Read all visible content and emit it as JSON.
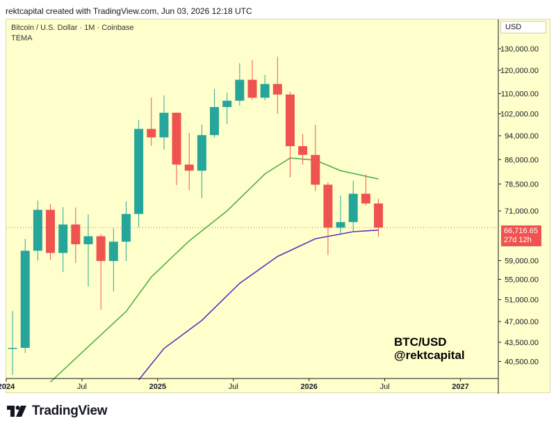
{
  "header": {
    "text": "rektcapital created with TradingView.com, Jun 03, 2026 12:18 UTC"
  },
  "legend": {
    "title": "Bitcoin / U.S. Dollar · 1M · Coinbase",
    "indicator": "TEMA"
  },
  "currency": "USD",
  "last_price": {
    "value": "66,716.65",
    "countdown": "27d 12h"
  },
  "watermark": {
    "line1": "BTC/USD",
    "line2": "@rektcapital"
  },
  "footer": {
    "brand": "TradingView"
  },
  "colors": {
    "background": "#ffffcc",
    "up": "#26a69a",
    "down": "#ef5350",
    "tema_fast": "#4caf50",
    "tema_slow": "#5b2fbf",
    "price_line": "#ef5350"
  },
  "chart_data": {
    "type": "candlestick",
    "title": "Bitcoin / U.S. Dollar · 1M · Coinbase",
    "y_scale": "log",
    "ylim": [
      38000,
      145000
    ],
    "y_ticks": [
      130000,
      120000,
      110000,
      102000,
      94000,
      86000,
      78500,
      71000,
      59000,
      55000,
      51000,
      47000,
      43500,
      40500
    ],
    "y_tick_labels": [
      "130,000.00",
      "120,000.00",
      "110,000.00",
      "102,000.00",
      "94,000.00",
      "86,000.00",
      "78,500.00",
      "71,000.00",
      "59,000.00",
      "55,000.00",
      "51,000.00",
      "47,000.00",
      "43,500.00",
      "40,500.00"
    ],
    "x_labels": [
      {
        "label": "2024",
        "at": "2024-01",
        "bold": true
      },
      {
        "label": "Jul",
        "at": "2024-07",
        "bold": false
      },
      {
        "label": "2025",
        "at": "2025-01",
        "bold": true
      },
      {
        "label": "Jul",
        "at": "2025-07",
        "bold": false
      },
      {
        "label": "2026",
        "at": "2026-01",
        "bold": true
      },
      {
        "label": "Jul",
        "at": "2026-07",
        "bold": false
      },
      {
        "label": "2027",
        "at": "2027-01",
        "bold": true
      }
    ],
    "x_range": [
      "2024-01",
      "2027-04"
    ],
    "candles": [
      {
        "date": "2024-01",
        "o": 42500,
        "h": 48900,
        "l": 38500,
        "c": 42600
      },
      {
        "date": "2024-02",
        "o": 42600,
        "h": 64000,
        "l": 41800,
        "c": 61200
      },
      {
        "date": "2024-03",
        "o": 61200,
        "h": 73800,
        "l": 59000,
        "c": 71300
      },
      {
        "date": "2024-04",
        "o": 71300,
        "h": 72800,
        "l": 59200,
        "c": 60700
      },
      {
        "date": "2024-05",
        "o": 60700,
        "h": 72000,
        "l": 56500,
        "c": 67500
      },
      {
        "date": "2024-06",
        "o": 67500,
        "h": 71900,
        "l": 58500,
        "c": 62700
      },
      {
        "date": "2024-07",
        "o": 62700,
        "h": 70100,
        "l": 53500,
        "c": 64600
      },
      {
        "date": "2024-08",
        "o": 64600,
        "h": 65100,
        "l": 49100,
        "c": 58900
      },
      {
        "date": "2024-09",
        "o": 58900,
        "h": 66500,
        "l": 52600,
        "c": 63300
      },
      {
        "date": "2024-10",
        "o": 63300,
        "h": 73600,
        "l": 58900,
        "c": 70200
      },
      {
        "date": "2024-11",
        "o": 70200,
        "h": 99600,
        "l": 66800,
        "c": 96400
      },
      {
        "date": "2024-12",
        "o": 96400,
        "h": 108400,
        "l": 90500,
        "c": 93400
      },
      {
        "date": "2025-01",
        "o": 93400,
        "h": 109200,
        "l": 89200,
        "c": 102400
      },
      {
        "date": "2025-02",
        "o": 102400,
        "h": 102500,
        "l": 78200,
        "c": 84400
      },
      {
        "date": "2025-03",
        "o": 84400,
        "h": 95000,
        "l": 76700,
        "c": 82500
      },
      {
        "date": "2025-04",
        "o": 82500,
        "h": 97900,
        "l": 74500,
        "c": 94200
      },
      {
        "date": "2025-05",
        "o": 94200,
        "h": 111900,
        "l": 93400,
        "c": 104600
      },
      {
        "date": "2025-06",
        "o": 104600,
        "h": 110400,
        "l": 98200,
        "c": 107100
      },
      {
        "date": "2025-07",
        "o": 107100,
        "h": 123200,
        "l": 105100,
        "c": 115800
      },
      {
        "date": "2025-08",
        "o": 115800,
        "h": 124500,
        "l": 107400,
        "c": 108300
      },
      {
        "date": "2025-09",
        "o": 108300,
        "h": 117900,
        "l": 107300,
        "c": 114000
      },
      {
        "date": "2025-10",
        "o": 114000,
        "h": 126200,
        "l": 102000,
        "c": 109600
      },
      {
        "date": "2025-11",
        "o": 109600,
        "h": 110700,
        "l": 80500,
        "c": 90400
      },
      {
        "date": "2025-12",
        "o": 90400,
        "h": 94600,
        "l": 84400,
        "c": 87500
      },
      {
        "date": "2026-01",
        "o": 87500,
        "h": 97900,
        "l": 76500,
        "c": 78300
      },
      {
        "date": "2026-02",
        "o": 78300,
        "h": 79000,
        "l": 60200,
        "c": 66700
      },
      {
        "date": "2026-03",
        "o": 66700,
        "h": 75200,
        "l": 64900,
        "c": 68100
      },
      {
        "date": "2026-04",
        "o": 68100,
        "h": 79500,
        "l": 65600,
        "c": 75700
      },
      {
        "date": "2026-05",
        "o": 75700,
        "h": 81300,
        "l": 72400,
        "c": 73000
      },
      {
        "date": "2026-06",
        "o": 73000,
        "h": 74300,
        "l": 64500,
        "c": 66716.65
      }
    ],
    "series": [
      {
        "color": "#4caf50",
        "x": [
          "2024-04",
          "2024-07",
          "2024-10",
          "2024-12",
          "2025-03",
          "2025-06",
          "2025-09",
          "2025-11",
          "2026-01",
          "2026-03",
          "2026-06"
        ],
        "values": [
          37500,
          42800,
          48800,
          55500,
          63500,
          71000,
          81500,
          86500,
          85800,
          82500,
          80000
        ]
      },
      {
        "color": "#5b2fbf",
        "x": [
          "2024-11",
          "2025-01",
          "2025-04",
          "2025-07",
          "2025-10",
          "2026-01",
          "2026-04",
          "2026-06"
        ],
        "values": [
          37800,
          42500,
          47200,
          54200,
          59900,
          64000,
          65700,
          66100
        ]
      }
    ],
    "price_line": 66716.65
  }
}
